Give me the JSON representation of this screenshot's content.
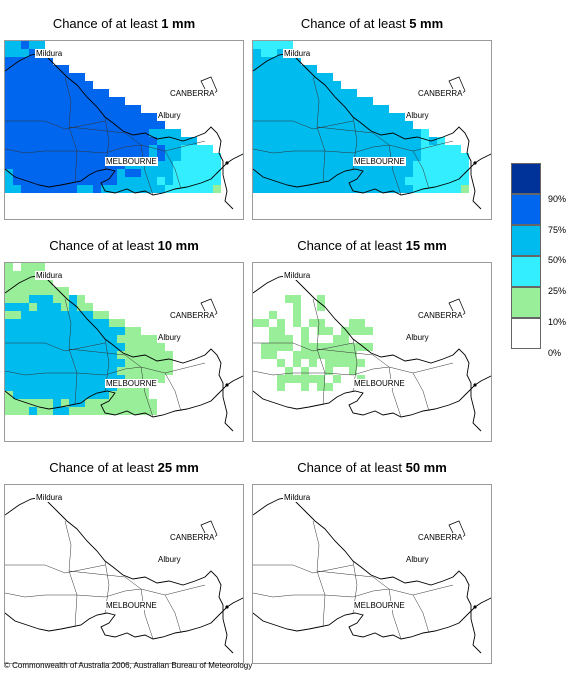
{
  "panels": [
    {
      "title_prefix": "Chance of at least ",
      "amount": "1 mm",
      "bands": {
        "blue": 0.75,
        "cyan": 0.5,
        "light": 0.25,
        "green": 0.1
      }
    },
    {
      "title_prefix": "Chance of at least ",
      "amount": "5 mm",
      "bands": {
        "cyan": 0.5,
        "light": 0.25,
        "green": 0.1
      }
    },
    {
      "title_prefix": "Chance of at least ",
      "amount": "10 mm",
      "bands": {
        "cyan": 0.5,
        "green": 0.1
      }
    },
    {
      "title_prefix": "Chance of at least ",
      "amount": "15 mm",
      "bands": {
        "green": 0.1
      }
    },
    {
      "title_prefix": "Chance of at least ",
      "amount": "25 mm",
      "bands": {}
    },
    {
      "title_prefix": "Chance of at least ",
      "amount": "50 mm",
      "bands": {}
    }
  ],
  "places": {
    "mildura": "Mildura",
    "canberra": "CANBERRA",
    "albury": "Albury",
    "melbourne": "MELBOURNE"
  },
  "legend": {
    "labels": [
      "90%",
      "75%",
      "50%",
      "25%",
      "10%",
      "0%"
    ],
    "colors": [
      "#003399",
      "#0066ee",
      "#00bbee",
      "#33eeff",
      "#99ee99",
      "#ffffff"
    ]
  },
  "copyright": "© Commonwealth of Australia 2006, Australian Bureau of Meteorology"
}
